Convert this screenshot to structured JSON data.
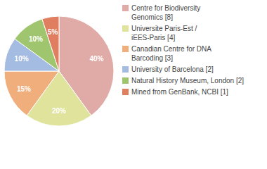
{
  "chart_data": {
    "type": "pie",
    "categories": [
      "Centre for Biodiversity\nGenomics [8]",
      "Universite Paris-Est /\niEES-Paris [4]",
      "Canadian Centre for DNA\nBarcoding [3]",
      "University of Barcelona [2]",
      "Natural History Museum, London [2]",
      "Mined from GenBank, NCBI [1]"
    ],
    "values": [
      40,
      20,
      15,
      10,
      10,
      5
    ],
    "value_labels": [
      "40%",
      "20%",
      "15%",
      "10%",
      "10%",
      "5%"
    ],
    "colors": [
      "#e0aaa6",
      "#dfe39c",
      "#f0ae7c",
      "#a4bbe2",
      "#9fc66f",
      "#e07e60"
    ],
    "data_labels": true,
    "legend": "right"
  }
}
